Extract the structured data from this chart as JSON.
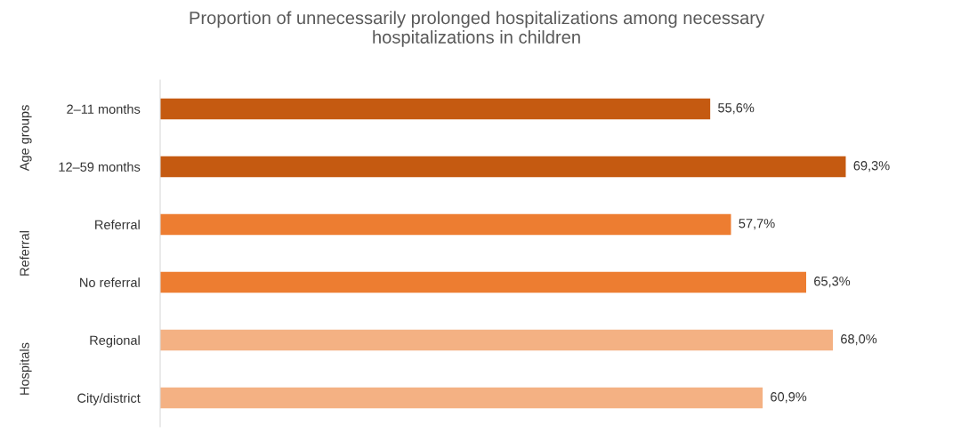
{
  "chart_data": {
    "type": "bar",
    "orientation": "horizontal",
    "title": "Proportion of unnecessarily prolonged hospitalizations among necessary\nhospitalizations in children",
    "categories": [
      "2–11 months",
      "12–59 months",
      "Referral",
      "No referral",
      "Regional",
      "City/district"
    ],
    "values": [
      55.6,
      69.3,
      57.7,
      65.3,
      68.0,
      60.9
    ],
    "colors": [
      "#c55a11",
      "#c55a11",
      "#ed7d31",
      "#ed7d31",
      "#f4b183",
      "#f4b183"
    ],
    "value_labels": [
      "55,6%",
      "69,3%",
      "57,7%",
      "65,3%",
      "68,0%",
      "60,9%"
    ],
    "annotations": [
      "Age groups",
      "Referral",
      "Hospitals"
    ],
    "tick_labels": "y",
    "grid": false,
    "legend": false
  }
}
